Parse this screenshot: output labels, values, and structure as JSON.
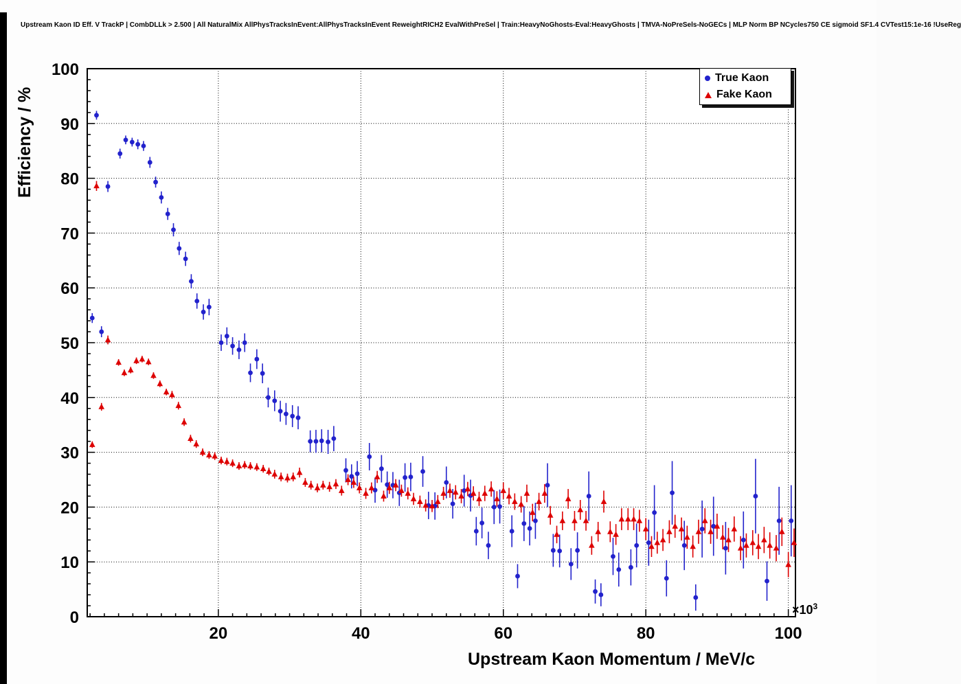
{
  "title": "Upstream Kaon ID Eff. V TrackP | CombDLLk > 2.500 | All NaturalMix AllPhysTracksInEvent:AllPhysTracksInEvent ReweightRICH2 EvalWithPreSel | Train:HeavyNoGhosts-Eval:HeavyGhosts | TMVA-NoPreSels-NoGECs | MLP Norm BP NCycles750 CE sigmoid SF1.4 CVTest15:1e-16 !UseReg",
  "chart_data": {
    "type": "scatter",
    "title": "Upstream Kaon ID Eff. V TrackP | CombDLLk > 2.500 | All NaturalMix AllPhysTracksInEvent:AllPhysTracksInEvent ReweightRICH2 EvalWithPreSel | Train:HeavyNoGhosts-Eval:HeavyGhosts | TMVA-NoPreSels-NoGECs | MLP Norm BP NCycles750 CE sigmoid SF1.4 CVTest15:1e-16 !UseReg",
    "xlabel": "Upstream Kaon Momentum / MeV/c",
    "ylabel": "Efficiency / %",
    "x_unit_exponent": {
      "base": "×10",
      "power": "3"
    },
    "x_units_note": "x values in units of 10^3 MeV/c",
    "xlim": [
      1.6,
      101.0
    ],
    "ylim": [
      0,
      100
    ],
    "x_ticks": [
      20,
      40,
      60,
      80,
      100
    ],
    "y_ticks": [
      0,
      10,
      20,
      30,
      40,
      50,
      60,
      70,
      80,
      90,
      100
    ],
    "minor_tick_step": {
      "x": 2,
      "y": 2
    },
    "grid": {
      "style": "dotted",
      "color": "#000000"
    },
    "frame_color": "#000000",
    "background": "#ffffff",
    "legend": {
      "position": "top-right",
      "entries": [
        {
          "label": "True Kaon",
          "marker": "circle",
          "color": "#2222cc"
        },
        {
          "label": "Fake Kaon",
          "marker": "triangle",
          "color": "#dd0000"
        }
      ]
    },
    "series": [
      {
        "name": "True Kaon",
        "marker": "circle",
        "color": "#2222cc",
        "points": [
          [
            2.3,
            54.5,
            0.9
          ],
          [
            2.9,
            91.5,
            0.8
          ],
          [
            3.6,
            52.0,
            1.0
          ],
          [
            4.5,
            78.5,
            1.0
          ],
          [
            6.2,
            84.5,
            0.9
          ],
          [
            7.0,
            87.0,
            0.8
          ],
          [
            7.9,
            86.6,
            0.8
          ],
          [
            8.7,
            86.2,
            0.9
          ],
          [
            9.5,
            85.9,
            0.9
          ],
          [
            10.4,
            82.9,
            1.0
          ],
          [
            11.2,
            79.3,
            1.0
          ],
          [
            12.0,
            76.5,
            1.1
          ],
          [
            12.9,
            73.5,
            1.1
          ],
          [
            13.7,
            70.6,
            1.2
          ],
          [
            14.5,
            67.2,
            1.2
          ],
          [
            15.4,
            65.3,
            1.3
          ],
          [
            16.2,
            61.2,
            1.3
          ],
          [
            17.0,
            57.6,
            1.4
          ],
          [
            17.9,
            55.6,
            1.4
          ],
          [
            18.7,
            56.5,
            1.5
          ],
          [
            20.4,
            50.0,
            1.5
          ],
          [
            21.2,
            51.2,
            1.6
          ],
          [
            22.0,
            49.4,
            1.6
          ],
          [
            22.9,
            48.7,
            1.7
          ],
          [
            23.7,
            50.0,
            1.7
          ],
          [
            24.5,
            44.5,
            1.7
          ],
          [
            25.4,
            47.0,
            1.8
          ],
          [
            26.2,
            44.4,
            1.8
          ],
          [
            27.0,
            40.0,
            1.8
          ],
          [
            27.9,
            39.4,
            1.9
          ],
          [
            28.7,
            37.5,
            1.9
          ],
          [
            29.5,
            37.0,
            2.0
          ],
          [
            30.4,
            36.6,
            2.0
          ],
          [
            31.2,
            36.3,
            2.1
          ],
          [
            32.9,
            32.0,
            2.0
          ],
          [
            33.7,
            32.0,
            2.1
          ],
          [
            34.5,
            32.1,
            2.1
          ],
          [
            35.4,
            31.9,
            2.2
          ],
          [
            36.2,
            32.5,
            2.3
          ],
          [
            37.9,
            26.7,
            2.2
          ],
          [
            38.7,
            25.6,
            2.2
          ],
          [
            39.5,
            26.1,
            2.3
          ],
          [
            41.2,
            29.2,
            2.5
          ],
          [
            42.0,
            23.1,
            2.3
          ],
          [
            42.9,
            27.0,
            2.5
          ],
          [
            43.7,
            24.1,
            2.4
          ],
          [
            44.5,
            24.0,
            2.4
          ],
          [
            45.4,
            22.6,
            2.4
          ],
          [
            46.2,
            25.4,
            2.6
          ],
          [
            47.0,
            25.5,
            2.6
          ],
          [
            48.7,
            26.5,
            2.8
          ],
          [
            49.5,
            20.3,
            2.5
          ],
          [
            50.4,
            20.2,
            2.5
          ],
          [
            52.0,
            24.5,
            2.9
          ],
          [
            52.9,
            20.6,
            2.7
          ],
          [
            54.5,
            23.0,
            2.9
          ],
          [
            55.4,
            22.1,
            2.9
          ],
          [
            56.2,
            15.6,
            2.6
          ],
          [
            57.0,
            17.1,
            2.8
          ],
          [
            57.9,
            13.0,
            2.5
          ],
          [
            58.7,
            20.0,
            3.1
          ],
          [
            59.5,
            20.1,
            3.1
          ],
          [
            61.2,
            15.6,
            2.9
          ],
          [
            62.0,
            7.4,
            2.2
          ],
          [
            62.9,
            17.0,
            3.2
          ],
          [
            63.7,
            16.1,
            3.1
          ],
          [
            64.5,
            17.5,
            3.3
          ],
          [
            66.2,
            24.0,
            4.0
          ],
          [
            67.0,
            12.1,
            3.0
          ],
          [
            67.9,
            12.0,
            3.0
          ],
          [
            69.5,
            9.6,
            2.9
          ],
          [
            70.4,
            12.1,
            3.3
          ],
          [
            72.0,
            22.0,
            4.5
          ],
          [
            72.9,
            4.6,
            2.2
          ],
          [
            73.7,
            4.0,
            2.1
          ],
          [
            75.4,
            11.0,
            3.4
          ],
          [
            76.2,
            8.6,
            3.1
          ],
          [
            77.9,
            9.0,
            3.3
          ],
          [
            78.7,
            13.0,
            4.0
          ],
          [
            80.4,
            13.5,
            4.2
          ],
          [
            81.2,
            19.0,
            5.0
          ],
          [
            82.9,
            7.0,
            3.3
          ],
          [
            83.7,
            22.6,
            5.8
          ],
          [
            85.4,
            13.0,
            4.5
          ],
          [
            87.0,
            3.5,
            2.4
          ],
          [
            87.9,
            16.0,
            5.2
          ],
          [
            89.5,
            16.5,
            5.4
          ],
          [
            91.2,
            12.5,
            4.8
          ],
          [
            93.7,
            14.0,
            5.2
          ],
          [
            95.4,
            22.0,
            6.8
          ],
          [
            97.0,
            6.5,
            3.6
          ],
          [
            98.7,
            17.5,
            6.2
          ],
          [
            100.4,
            17.5,
            6.5
          ]
        ]
      },
      {
        "name": "Fake Kaon",
        "marker": "triangle",
        "color": "#dd0000",
        "points": [
          [
            2.3,
            31.4,
            0.6
          ],
          [
            2.9,
            78.6,
            0.9
          ],
          [
            3.6,
            38.3,
            0.7
          ],
          [
            4.5,
            50.5,
            0.8
          ],
          [
            6.0,
            46.4,
            0.6
          ],
          [
            6.8,
            44.5,
            0.6
          ],
          [
            7.7,
            45.0,
            0.6
          ],
          [
            8.5,
            46.7,
            0.6
          ],
          [
            9.3,
            47.0,
            0.6
          ],
          [
            10.2,
            46.5,
            0.6
          ],
          [
            10.9,
            44.0,
            0.6
          ],
          [
            11.8,
            42.5,
            0.6
          ],
          [
            12.7,
            41.0,
            0.6
          ],
          [
            13.5,
            40.5,
            0.7
          ],
          [
            14.4,
            38.5,
            0.7
          ],
          [
            15.2,
            35.5,
            0.7
          ],
          [
            16.1,
            32.5,
            0.7
          ],
          [
            16.9,
            31.5,
            0.7
          ],
          [
            17.8,
            30.0,
            0.7
          ],
          [
            18.7,
            29.5,
            0.7
          ],
          [
            19.5,
            29.3,
            0.7
          ],
          [
            20.4,
            28.5,
            0.7
          ],
          [
            21.2,
            28.3,
            0.7
          ],
          [
            22.0,
            28.0,
            0.7
          ],
          [
            22.9,
            27.5,
            0.7
          ],
          [
            23.7,
            27.7,
            0.7
          ],
          [
            24.5,
            27.5,
            0.7
          ],
          [
            25.4,
            27.3,
            0.7
          ],
          [
            26.3,
            27.0,
            0.7
          ],
          [
            27.1,
            26.5,
            0.7
          ],
          [
            27.9,
            26.0,
            0.8
          ],
          [
            28.8,
            25.5,
            0.8
          ],
          [
            29.7,
            25.3,
            0.8
          ],
          [
            30.5,
            25.5,
            0.8
          ],
          [
            31.4,
            26.3,
            0.9
          ],
          [
            32.2,
            24.5,
            0.8
          ],
          [
            33.0,
            24.0,
            0.8
          ],
          [
            33.9,
            23.5,
            0.8
          ],
          [
            34.7,
            24.0,
            0.8
          ],
          [
            35.6,
            23.7,
            0.9
          ],
          [
            36.5,
            24.2,
            0.9
          ],
          [
            37.3,
            23.0,
            0.9
          ],
          [
            38.2,
            25.0,
            1.0
          ],
          [
            39.0,
            24.5,
            1.0
          ],
          [
            39.8,
            23.5,
            1.0
          ],
          [
            40.7,
            22.5,
            1.0
          ],
          [
            41.5,
            23.5,
            1.0
          ],
          [
            42.3,
            25.5,
            1.1
          ],
          [
            43.2,
            22.0,
            1.0
          ],
          [
            44.0,
            23.5,
            1.1
          ],
          [
            44.9,
            24.0,
            1.1
          ],
          [
            45.7,
            23.0,
            1.1
          ],
          [
            46.6,
            22.5,
            1.1
          ],
          [
            47.4,
            21.5,
            1.1
          ],
          [
            48.3,
            21.0,
            1.1
          ],
          [
            49.1,
            20.3,
            1.1
          ],
          [
            50.0,
            20.2,
            1.1
          ],
          [
            50.8,
            21.0,
            1.2
          ],
          [
            51.6,
            22.5,
            1.2
          ],
          [
            52.5,
            23.0,
            1.3
          ],
          [
            53.3,
            22.7,
            1.3
          ],
          [
            54.1,
            22.0,
            1.3
          ],
          [
            55.0,
            23.3,
            1.3
          ],
          [
            55.8,
            22.5,
            1.3
          ],
          [
            56.6,
            21.5,
            1.3
          ],
          [
            57.4,
            22.5,
            1.4
          ],
          [
            58.3,
            23.3,
            1.4
          ],
          [
            59.1,
            21.5,
            1.4
          ],
          [
            60.0,
            23.0,
            1.5
          ],
          [
            60.8,
            22.0,
            1.5
          ],
          [
            61.6,
            21.0,
            1.5
          ],
          [
            62.5,
            20.5,
            1.5
          ],
          [
            63.3,
            22.5,
            1.6
          ],
          [
            64.1,
            19.0,
            1.6
          ],
          [
            65.0,
            21.0,
            1.6
          ],
          [
            65.8,
            22.5,
            1.7
          ],
          [
            66.6,
            18.5,
            1.7
          ],
          [
            67.5,
            15.0,
            1.6
          ],
          [
            68.3,
            17.5,
            1.7
          ],
          [
            69.1,
            21.5,
            1.8
          ],
          [
            70.0,
            17.5,
            1.8
          ],
          [
            70.8,
            19.5,
            1.8
          ],
          [
            71.6,
            17.5,
            1.8
          ],
          [
            72.4,
            13.0,
            1.7
          ],
          [
            73.3,
            15.5,
            1.8
          ],
          [
            74.1,
            21.0,
            2.0
          ],
          [
            75.0,
            15.5,
            1.9
          ],
          [
            75.8,
            15.0,
            1.9
          ],
          [
            76.6,
            17.8,
            2.0
          ],
          [
            77.5,
            17.8,
            2.0
          ],
          [
            78.3,
            17.8,
            2.0
          ],
          [
            79.1,
            17.5,
            2.0
          ],
          [
            80.0,
            16.0,
            2.0
          ],
          [
            80.8,
            12.8,
            1.9
          ],
          [
            81.6,
            13.5,
            2.0
          ],
          [
            82.4,
            14.0,
            2.0
          ],
          [
            83.3,
            15.5,
            2.1
          ],
          [
            84.1,
            16.5,
            2.1
          ],
          [
            85.0,
            16.0,
            2.1
          ],
          [
            85.8,
            14.5,
            2.1
          ],
          [
            86.6,
            12.8,
            2.0
          ],
          [
            87.4,
            15.5,
            2.2
          ],
          [
            88.3,
            17.5,
            2.3
          ],
          [
            89.1,
            15.5,
            2.2
          ],
          [
            90.0,
            16.5,
            2.3
          ],
          [
            90.8,
            14.5,
            2.2
          ],
          [
            91.6,
            14.0,
            2.2
          ],
          [
            92.4,
            16.0,
            2.3
          ],
          [
            93.3,
            12.5,
            2.2
          ],
          [
            94.1,
            13.0,
            2.2
          ],
          [
            95.0,
            13.5,
            2.3
          ],
          [
            95.8,
            12.8,
            2.3
          ],
          [
            96.6,
            14.0,
            2.4
          ],
          [
            97.4,
            13.0,
            2.4
          ],
          [
            98.3,
            12.5,
            2.4
          ],
          [
            99.1,
            15.5,
            2.6
          ],
          [
            100.0,
            9.5,
            2.3
          ],
          [
            100.8,
            13.5,
            2.6
          ]
        ]
      }
    ]
  }
}
